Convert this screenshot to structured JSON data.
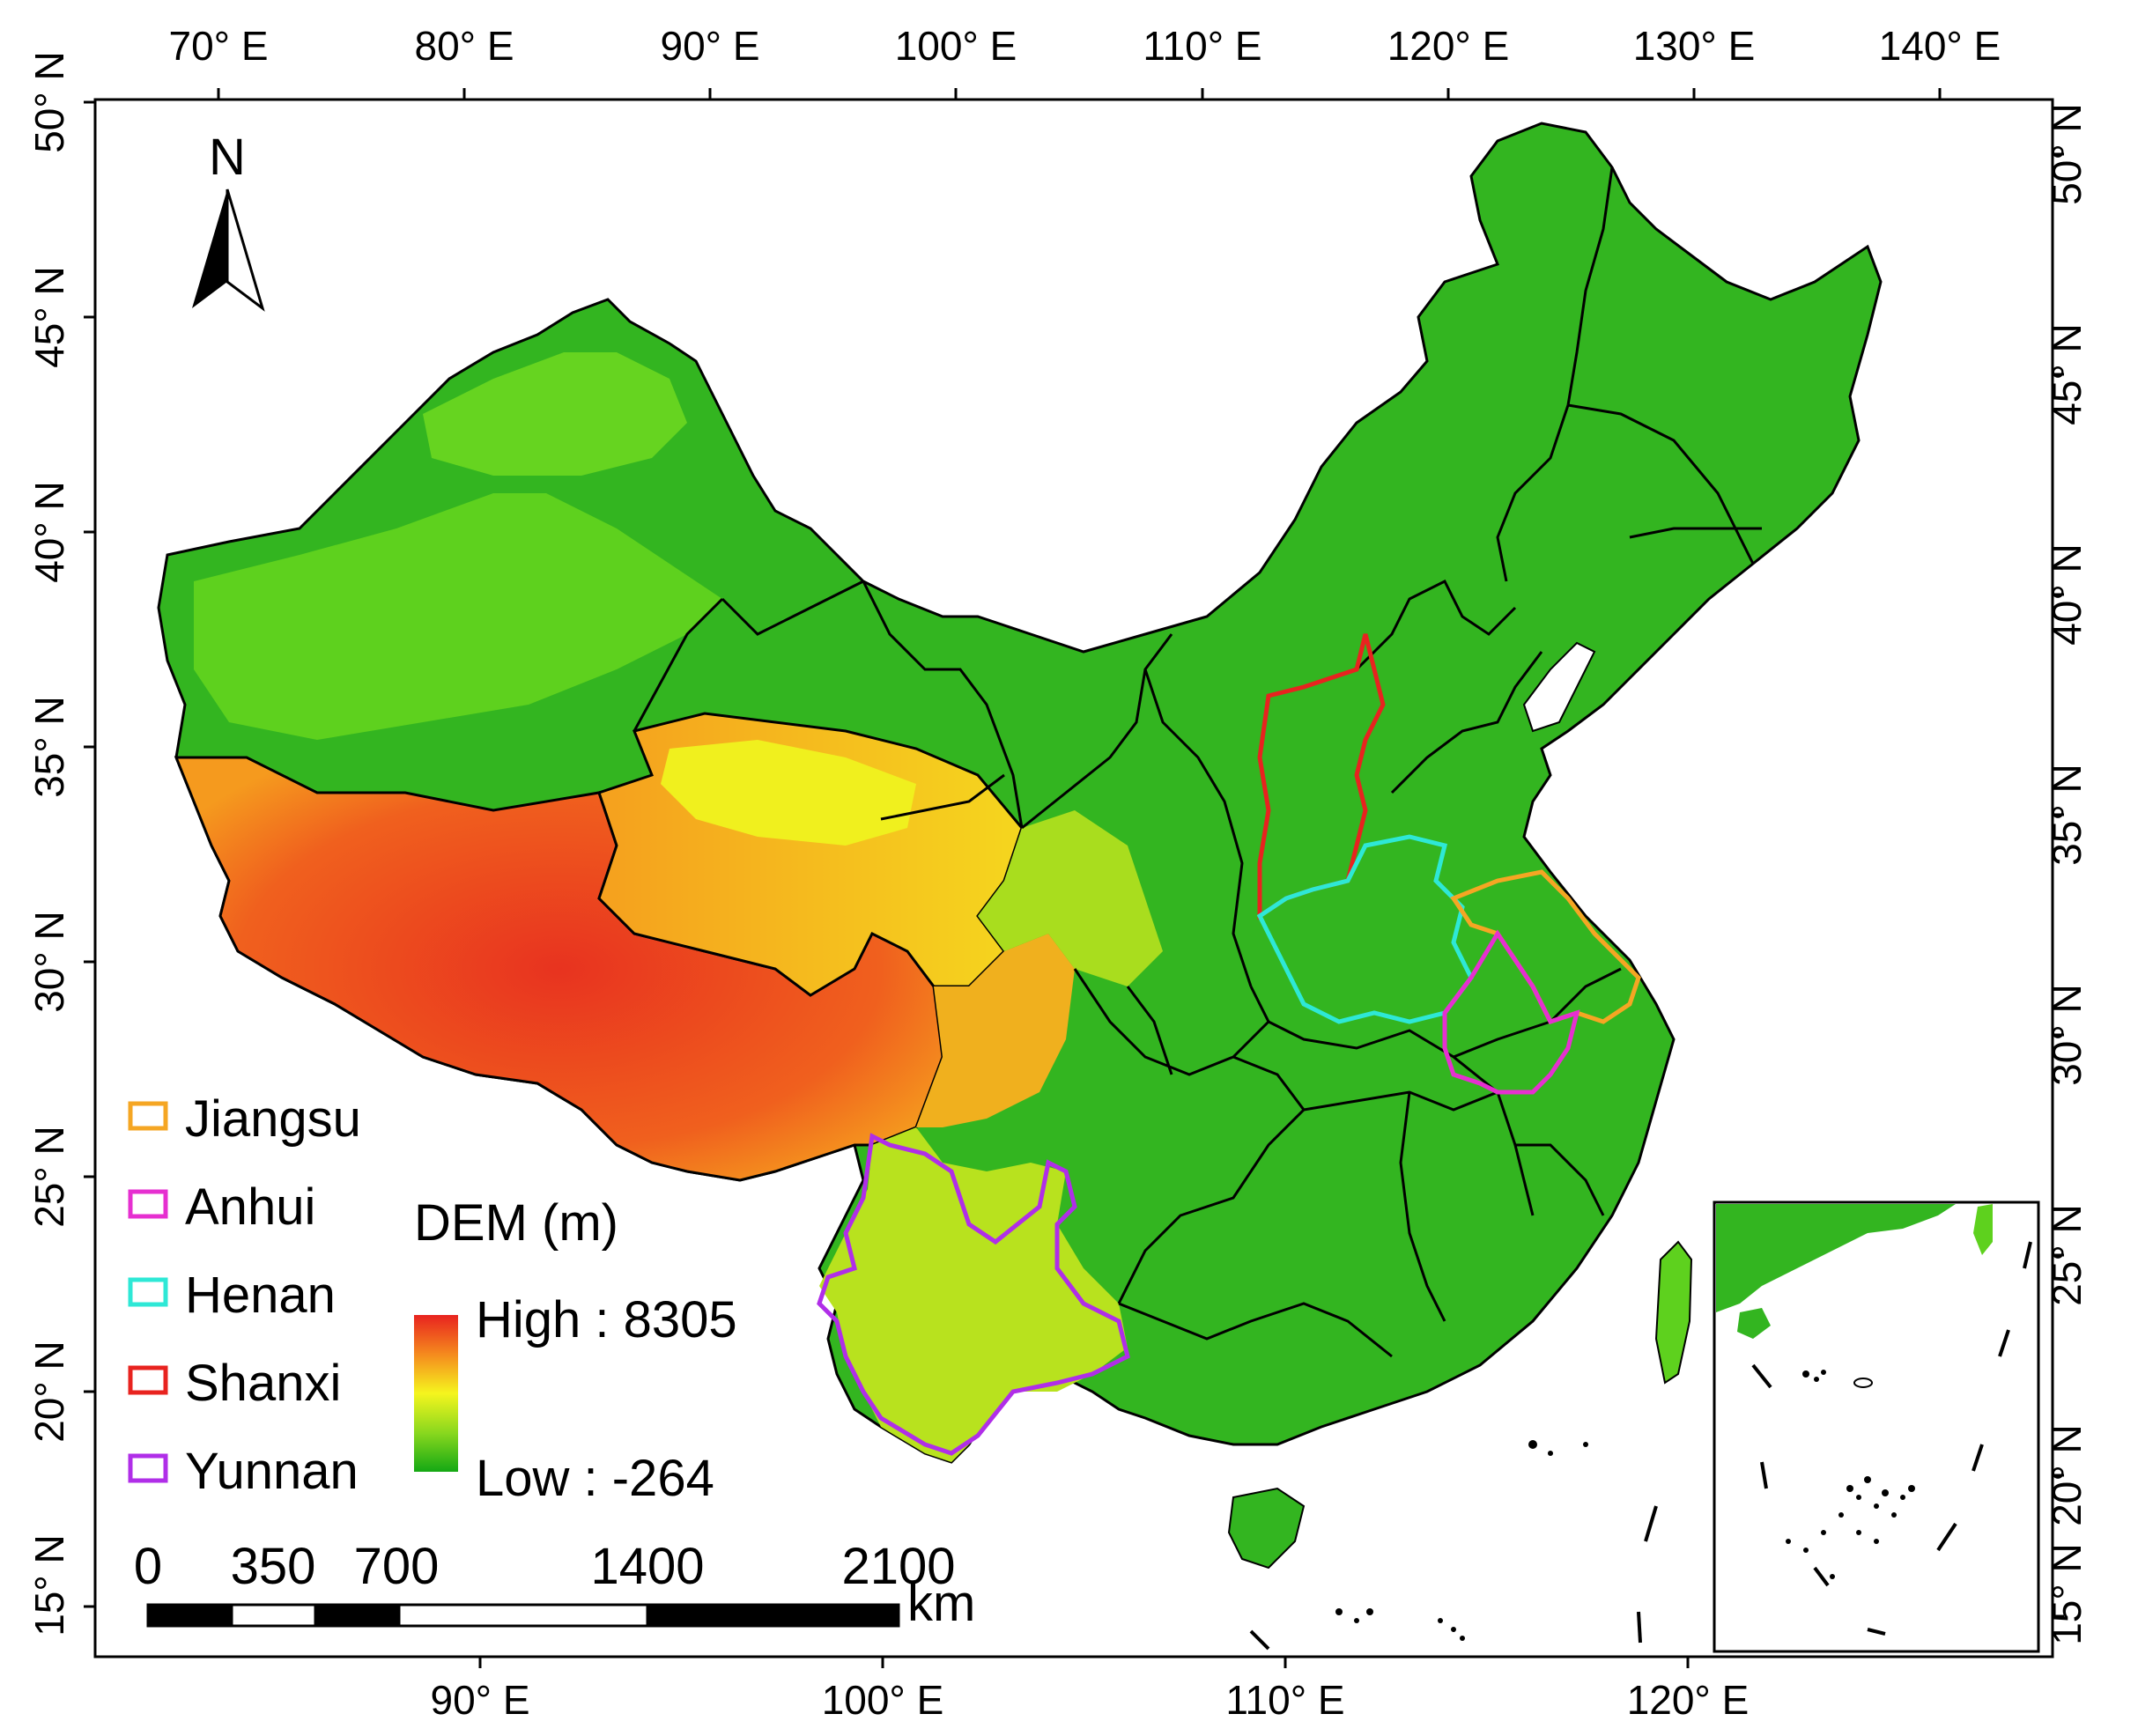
{
  "map": {
    "north_label": "N",
    "top_axis_ticks": [
      "70° E",
      "80° E",
      "90° E",
      "100° E",
      "110° E",
      "120° E",
      "130° E",
      "140° E"
    ],
    "bottom_axis_ticks": [
      "90° E",
      "100° E",
      "110° E",
      "120° E"
    ],
    "left_axis_ticks": [
      "50° N",
      "45° N",
      "40° N",
      "35° N",
      "30° N",
      "25° N",
      "20° N",
      "15° N"
    ],
    "right_axis_ticks": [
      "50° N",
      "45° N",
      "40° N",
      "35° N",
      "30° N",
      "25° N",
      "20° N",
      "15° N"
    ],
    "legend": [
      {
        "name": "Jiangsu",
        "color": "#f5a623"
      },
      {
        "name": "Anhui",
        "color": "#e62fd0"
      },
      {
        "name": "Henan",
        "color": "#2ee8d6"
      },
      {
        "name": "Shanxi",
        "color": "#e8231f"
      },
      {
        "name": "Yunnan",
        "color": "#b02ee8"
      }
    ],
    "dem": {
      "title": "DEM (m)",
      "high_label": "High : 8305",
      "low_label": "Low : -264",
      "high_value": 8305,
      "low_value": -264,
      "color_high": "#e8231f",
      "color_mid": "#f5f51e",
      "color_low": "#14a814"
    },
    "scale_bar": {
      "ticks": [
        "0",
        "350",
        "700",
        "1400",
        "2100"
      ],
      "unit": "km"
    }
  }
}
